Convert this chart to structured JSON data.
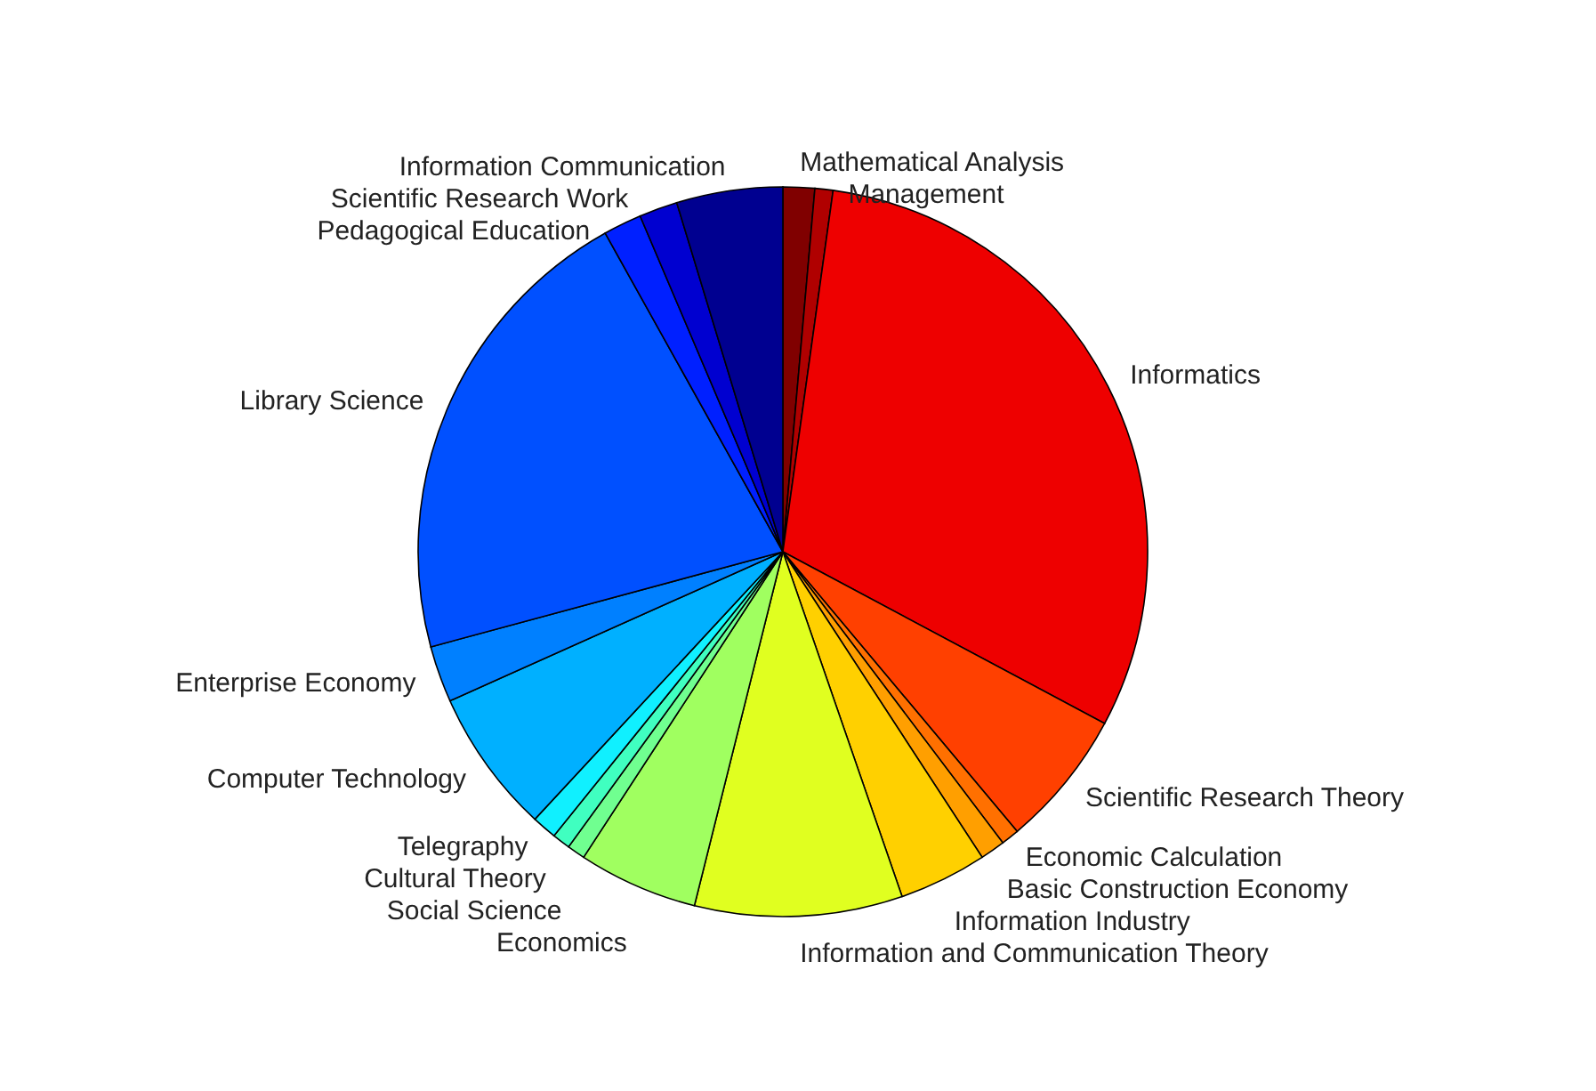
{
  "chart_data": {
    "type": "pie",
    "categories": [
      "Mathematical Analysis",
      "Management",
      "Informatics",
      "Scientific Research Theory",
      "Economic Calculation",
      "Basic Construction Economy",
      "Information Industry",
      "Information and Communication Theory",
      "Economics",
      "Social Science",
      "Cultural Theory",
      "Telegraphy",
      "Computer Technology",
      "Enterprise Economy",
      "Library Science",
      "Pedagogical Education",
      "Scientific Research Work",
      "Information Communication"
    ],
    "values": [
      1.4,
      0.8,
      30.6,
      6.1,
      0.8,
      1.1,
      3.9,
      9.2,
      5.3,
      0.8,
      0.8,
      1.1,
      6.4,
      2.5,
      21.1,
      1.7,
      1.7,
      4.7
    ],
    "colors": [
      "#800000",
      "#b00000",
      "#ee0000",
      "#ff4000",
      "#ff7000",
      "#ff9f00",
      "#ffd000",
      "#e0ff20",
      "#a0ff60",
      "#70ff90",
      "#40ffc0",
      "#10f0ff",
      "#00b0ff",
      "#0080ff",
      "#0050ff",
      "#0020ff",
      "#0000d0",
      "#000090"
    ]
  }
}
